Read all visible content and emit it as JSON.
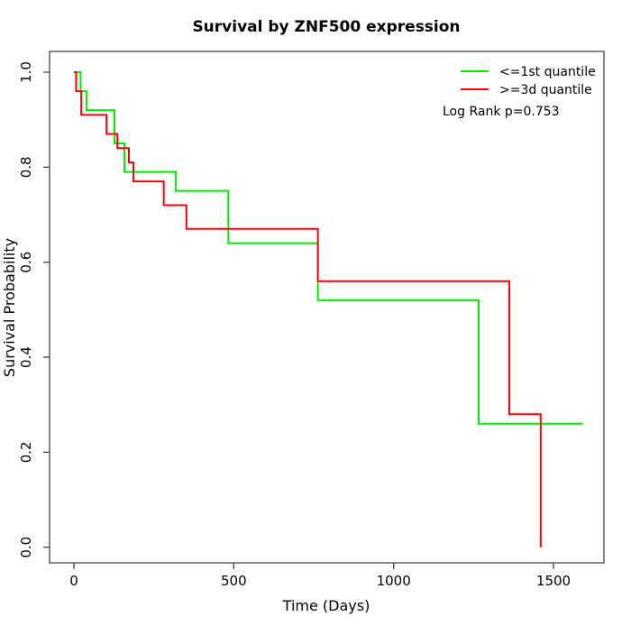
{
  "title": "Survival by ZNF500 expression",
  "colors": {
    "group1": "#00ee00",
    "group2": "#ff0000",
    "axis": "#444444",
    "text": "#000000",
    "background": "#ffffff"
  },
  "legend": {
    "items": [
      {
        "label": "<=1st quantile",
        "color": "#00ee00"
      },
      {
        "label": ">=3d quantile",
        "color": "#ff0000"
      }
    ],
    "position": "top-right"
  },
  "annotation": "Log Rank p=0.753",
  "chart_data": {
    "type": "line",
    "subtype": "kaplan-meier-step",
    "title": "Survival by ZNF500 expression",
    "xlabel": "Time (Days)",
    "ylabel": "Survival Probability",
    "x_ticks": [
      0,
      500,
      1000,
      1500
    ],
    "y_ticks": [
      1.0,
      0.8,
      0.6,
      0.4,
      0.2,
      0.0
    ],
    "y_tick_labels": [
      "1.0",
      "0.8",
      "0.6",
      "0.4",
      "0.2",
      "0.0"
    ],
    "xlim": [
      0,
      1600
    ],
    "ylim": [
      0.0,
      1.0
    ],
    "grid": false,
    "legend_position": "top-right",
    "annotation": "Log Rank p=0.753",
    "series": [
      {
        "name": "<=1st quantile",
        "color": "#00ee00",
        "steps": [
          [
            0,
            1.0
          ],
          [
            21,
            0.96
          ],
          [
            39,
            0.92
          ],
          [
            127,
            0.85
          ],
          [
            158,
            0.79
          ],
          [
            319,
            0.75
          ],
          [
            483,
            0.64
          ],
          [
            763,
            0.52
          ],
          [
            1266,
            0.26
          ]
        ],
        "end_time": 1592,
        "ends_at_zero": false
      },
      {
        "name": ">=3d quantile",
        "color": "#ff0000",
        "steps": [
          [
            0,
            1.0
          ],
          [
            7,
            0.96
          ],
          [
            23,
            0.91
          ],
          [
            102,
            0.87
          ],
          [
            136,
            0.84
          ],
          [
            172,
            0.81
          ],
          [
            186,
            0.77
          ],
          [
            281,
            0.72
          ],
          [
            352,
            0.67
          ],
          [
            763,
            0.56
          ],
          [
            1362,
            0.28
          ],
          [
            1460,
            0.0
          ]
        ],
        "end_time": 1460,
        "ends_at_zero": true
      }
    ]
  }
}
